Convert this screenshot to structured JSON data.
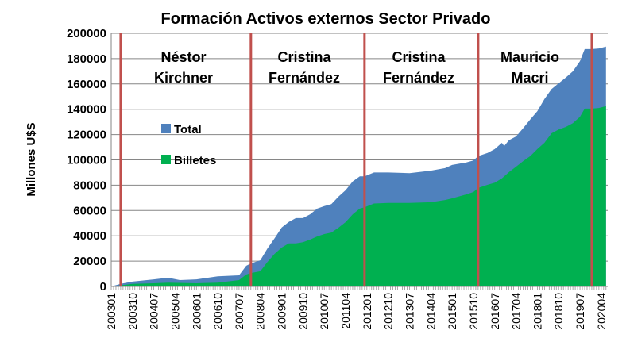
{
  "chart_data": {
    "type": "area",
    "title": "Formación  Activos externos Sector Privado",
    "xlabel": "",
    "ylabel": "Millones  U$S",
    "ylim": [
      0,
      200000
    ],
    "yticks": [
      0,
      20000,
      40000,
      60000,
      80000,
      100000,
      120000,
      140000,
      160000,
      180000,
      200000
    ],
    "xticks": [
      "200301",
      "200310",
      "200407",
      "200504",
      "200601",
      "200610",
      "200707",
      "200804",
      "200901",
      "200910",
      "201007",
      "201104",
      "201201",
      "201210",
      "201307",
      "201404",
      "201501",
      "201510",
      "201607",
      "201704",
      "201801",
      "201810",
      "201907",
      "202004"
    ],
    "x_range": [
      "200301",
      "202006"
    ],
    "grid": "horizontal",
    "legend": "center-left",
    "series": [
      {
        "name": "Total",
        "color": "#4f81bd",
        "points": [
          [
            "200301",
            0
          ],
          [
            "200305",
            2000
          ],
          [
            "200310",
            3800
          ],
          [
            "200407",
            5600
          ],
          [
            "200501",
            6900
          ],
          [
            "200506",
            5000
          ],
          [
            "200601",
            5600
          ],
          [
            "200610",
            8000
          ],
          [
            "200707",
            8800
          ],
          [
            "200710",
            16300
          ],
          [
            "200712",
            18200
          ],
          [
            "200804",
            20700
          ],
          [
            "200807",
            30000
          ],
          [
            "200810",
            38000
          ],
          [
            "200901",
            46500
          ],
          [
            "200904",
            51000
          ],
          [
            "200907",
            54000
          ],
          [
            "200910",
            54000
          ],
          [
            "201001",
            57000
          ],
          [
            "201004",
            61500
          ],
          [
            "201007",
            63500
          ],
          [
            "201010",
            65000
          ],
          [
            "201101",
            71000
          ],
          [
            "201104",
            76000
          ],
          [
            "201107",
            83000
          ],
          [
            "201110",
            87000
          ],
          [
            "201112",
            87000
          ],
          [
            "201204",
            90000
          ],
          [
            "201210",
            90000
          ],
          [
            "201307",
            89500
          ],
          [
            "201404",
            91500
          ],
          [
            "201410",
            93500
          ],
          [
            "201501",
            96000
          ],
          [
            "201507",
            98000
          ],
          [
            "201510",
            99500
          ],
          [
            "201512",
            103000
          ],
          [
            "201604",
            105500
          ],
          [
            "201607",
            108500
          ],
          [
            "201610",
            113500
          ],
          [
            "201611",
            111000
          ],
          [
            "201701",
            115500
          ],
          [
            "201704",
            118500
          ],
          [
            "201707",
            125000
          ],
          [
            "201710",
            132000
          ],
          [
            "201801",
            138500
          ],
          [
            "201804",
            148000
          ],
          [
            "201807",
            156000
          ],
          [
            "201810",
            160500
          ],
          [
            "201901",
            165000
          ],
          [
            "201904",
            170000
          ],
          [
            "201907",
            178000
          ],
          [
            "201909",
            187500
          ],
          [
            "201912",
            187500
          ],
          [
            "202003",
            188000
          ],
          [
            "202006",
            189500
          ]
        ]
      },
      {
        "name": "Billetes",
        "color": "#00b050",
        "points": [
          [
            "200301",
            0
          ],
          [
            "200310",
            2000
          ],
          [
            "200407",
            2500
          ],
          [
            "200501",
            3000
          ],
          [
            "200601",
            2500
          ],
          [
            "200610",
            3000
          ],
          [
            "200707",
            5000
          ],
          [
            "200710",
            9400
          ],
          [
            "200712",
            10600
          ],
          [
            "200804",
            12000
          ],
          [
            "200807",
            19400
          ],
          [
            "200810",
            25700
          ],
          [
            "200901",
            30700
          ],
          [
            "200904",
            34000
          ],
          [
            "200907",
            34000
          ],
          [
            "200910",
            35000
          ],
          [
            "201001",
            37000
          ],
          [
            "201004",
            39500
          ],
          [
            "201007",
            41400
          ],
          [
            "201010",
            42600
          ],
          [
            "201101",
            46400
          ],
          [
            "201104",
            50800
          ],
          [
            "201107",
            57000
          ],
          [
            "201110",
            61500
          ],
          [
            "201112",
            62500
          ],
          [
            "201204",
            65500
          ],
          [
            "201210",
            66000
          ],
          [
            "201307",
            66000
          ],
          [
            "201404",
            66500
          ],
          [
            "201410",
            68300
          ],
          [
            "201501",
            69600
          ],
          [
            "201507",
            72700
          ],
          [
            "201510",
            74600
          ],
          [
            "201512",
            77800
          ],
          [
            "201604",
            80300
          ],
          [
            "201607",
            82000
          ],
          [
            "201610",
            85300
          ],
          [
            "201701",
            90300
          ],
          [
            "201704",
            94600
          ],
          [
            "201707",
            99000
          ],
          [
            "201710",
            103000
          ],
          [
            "201801",
            108500
          ],
          [
            "201804",
            113500
          ],
          [
            "201807",
            121000
          ],
          [
            "201810",
            124000
          ],
          [
            "201901",
            126000
          ],
          [
            "201904",
            129000
          ],
          [
            "201907",
            134000
          ],
          [
            "201909",
            140500
          ],
          [
            "201912",
            140500
          ],
          [
            "202003",
            141000
          ],
          [
            "202006",
            142500
          ]
        ]
      }
    ],
    "vertical_markers": {
      "color": "#c0504d",
      "dates": [
        "200305",
        "200712",
        "201112",
        "201512",
        "201912"
      ]
    },
    "annotations": [
      {
        "line1": "Néstor",
        "line2": "Kirchner"
      },
      {
        "line1": "Cristina",
        "line2": "Fernández"
      },
      {
        "line1": "Cristina",
        "line2": "Fernández"
      },
      {
        "line1": "Mauricio",
        "line2": "Macri"
      }
    ]
  }
}
